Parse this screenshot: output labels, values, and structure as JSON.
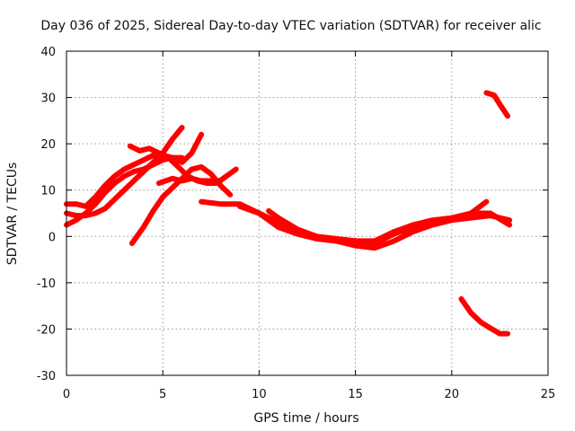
{
  "chart_data": {
    "type": "line",
    "title": "Day 036 of 2025, Sidereal Day-to-day VTEC variation (SDTVAR) for receiver alic",
    "xlabel": "GPS time / hours",
    "ylabel": "SDTVAR / TECUs",
    "xlim": [
      0,
      25
    ],
    "ylim": [
      -30,
      40
    ],
    "xticks": [
      0,
      5,
      10,
      15,
      20,
      25
    ],
    "yticks": [
      -30,
      -20,
      -10,
      0,
      10,
      20,
      30,
      40
    ],
    "grid": true,
    "color": "#ff0000",
    "series": [
      {
        "name": "trace-1",
        "x": [
          0.0,
          0.5,
          1.0,
          1.5,
          2.0,
          2.5,
          3.0,
          3.5,
          4.0,
          4.5,
          5.0,
          5.5,
          6.0
        ],
        "y": [
          2.5,
          3.5,
          5.0,
          7.0,
          9.5,
          11.5,
          13.0,
          14.0,
          14.5,
          15.5,
          16.5,
          17.0,
          17.0
        ]
      },
      {
        "name": "trace-2",
        "x": [
          0.0,
          0.5,
          1.0,
          1.5,
          2.0,
          2.5,
          3.0,
          3.5,
          4.0,
          4.5,
          5.0,
          5.5,
          6.0
        ],
        "y": [
          5.0,
          4.5,
          4.5,
          5.0,
          6.0,
          8.0,
          10.0,
          12.0,
          14.0,
          16.0,
          18.0,
          21.0,
          23.5
        ]
      },
      {
        "name": "trace-3",
        "x": [
          0.0,
          0.5,
          1.0,
          1.5,
          2.0,
          2.5,
          3.0,
          3.5,
          4.0,
          4.5,
          5.0,
          5.5,
          6.0,
          6.5,
          7.0
        ],
        "y": [
          7.0,
          7.0,
          6.5,
          8.5,
          11.0,
          13.0,
          14.5,
          15.5,
          16.5,
          17.5,
          17.5,
          17.0,
          16.0,
          18.0,
          22.0
        ]
      },
      {
        "name": "trace-4",
        "x": [
          3.3,
          3.8,
          4.3,
          4.8,
          5.3,
          5.8,
          6.3,
          6.8,
          7.3,
          7.8,
          8.3,
          8.8
        ],
        "y": [
          19.5,
          18.5,
          19.0,
          18.0,
          17.0,
          15.0,
          13.0,
          12.0,
          11.5,
          11.5,
          13.0,
          14.5
        ]
      },
      {
        "name": "trace-5",
        "x": [
          3.4,
          4.0,
          4.5,
          5.0,
          5.5,
          6.0,
          6.5,
          7.0,
          7.5,
          8.0,
          8.5
        ],
        "y": [
          -1.5,
          2.0,
          5.5,
          8.5,
          10.5,
          12.5,
          14.5,
          15.0,
          13.5,
          11.0,
          9.0
        ]
      },
      {
        "name": "trace-6",
        "x": [
          4.8,
          5.5,
          6.0,
          6.5,
          7.0,
          7.5,
          8.0
        ],
        "y": [
          11.5,
          12.5,
          12.0,
          12.5,
          12.0,
          12.0,
          12.0
        ]
      },
      {
        "name": "trace-7",
        "x": [
          7.0,
          8.0,
          9.0,
          10.0,
          11.0,
          12.0,
          13.0,
          14.0,
          15.0,
          16.0,
          17.0,
          18.0,
          19.0,
          20.0,
          21.0,
          22.0,
          23.0
        ],
        "y": [
          7.5,
          7.0,
          7.0,
          5.0,
          2.0,
          0.5,
          -0.5,
          -1.0,
          -1.5,
          -1.5,
          0.5,
          2.0,
          3.0,
          3.5,
          4.0,
          4.5,
          3.5
        ]
      },
      {
        "name": "trace-8",
        "x": [
          9.0,
          10.0,
          11.0,
          12.0,
          13.0,
          14.0,
          15.0,
          16.0,
          17.0,
          18.0,
          19.0,
          20.0,
          21.0,
          21.8
        ],
        "y": [
          6.5,
          5.0,
          3.0,
          1.0,
          -0.5,
          -1.0,
          -2.0,
          -2.5,
          -1.0,
          1.0,
          2.5,
          3.5,
          5.0,
          7.5
        ]
      },
      {
        "name": "trace-9",
        "x": [
          10.5,
          11.0,
          12.0,
          13.0,
          14.0,
          15.0,
          16.0,
          17.0,
          18.0,
          19.0,
          20.0,
          21.0,
          22.0,
          23.0
        ],
        "y": [
          5.5,
          4.0,
          1.5,
          0.0,
          -0.5,
          -1.0,
          -1.0,
          1.0,
          2.5,
          3.5,
          4.0,
          5.0,
          5.0,
          2.5
        ]
      },
      {
        "name": "trace-10",
        "x": [
          21.8,
          22.2,
          22.5,
          22.9
        ],
        "y": [
          31.0,
          30.5,
          28.5,
          26.0
        ]
      },
      {
        "name": "trace-11",
        "x": [
          20.5,
          21.0,
          21.5,
          22.0,
          22.5,
          22.9
        ],
        "y": [
          -13.5,
          -16.5,
          -18.5,
          -19.8,
          -21.0,
          -21.0
        ]
      }
    ]
  }
}
